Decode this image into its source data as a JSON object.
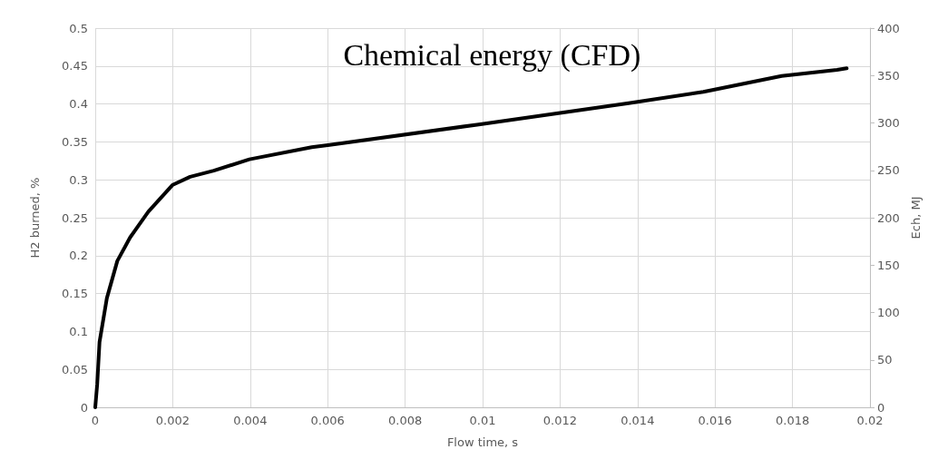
{
  "chart_data": {
    "type": "line",
    "title": "Chemical energy (CFD)",
    "xlabel": "Flow time, s",
    "ylabel": "H2 burned, %",
    "y2label": "Ech, MJ",
    "series": [
      {
        "color": "#000000",
        "x": [
          0,
          5e-05,
          0.00011,
          0.0003,
          0.00057,
          0.0009,
          0.00137,
          0.00199,
          0.00245,
          0.00306,
          0.00398,
          0.00559,
          0.00605,
          0.0099,
          0.01377,
          0.0157,
          0.01772,
          0.01915,
          0.0194
        ],
        "values": [
          0,
          0.03,
          0.086,
          0.144,
          0.193,
          0.224,
          0.258,
          0.293,
          0.304,
          0.312,
          0.327,
          0.343,
          0.346,
          0.373,
          0.401,
          0.416,
          0.437,
          0.445,
          0.447
        ]
      }
    ],
    "xlim": [
      0,
      0.02
    ],
    "xticks": [
      0,
      0.002,
      0.004,
      0.006,
      0.008,
      0.01,
      0.012,
      0.014,
      0.016,
      0.018,
      0.02
    ],
    "ylim": [
      0,
      0.5
    ],
    "yticks": [
      0,
      0.05,
      0.1,
      0.15,
      0.2,
      0.25,
      0.3,
      0.35,
      0.4,
      0.45,
      0.5
    ],
    "y2lim": [
      0,
      400
    ],
    "y2ticks": [
      0,
      50,
      100,
      150,
      200,
      250,
      300,
      350,
      400
    ],
    "grid": true,
    "marker": "none",
    "line_style": "solid"
  }
}
